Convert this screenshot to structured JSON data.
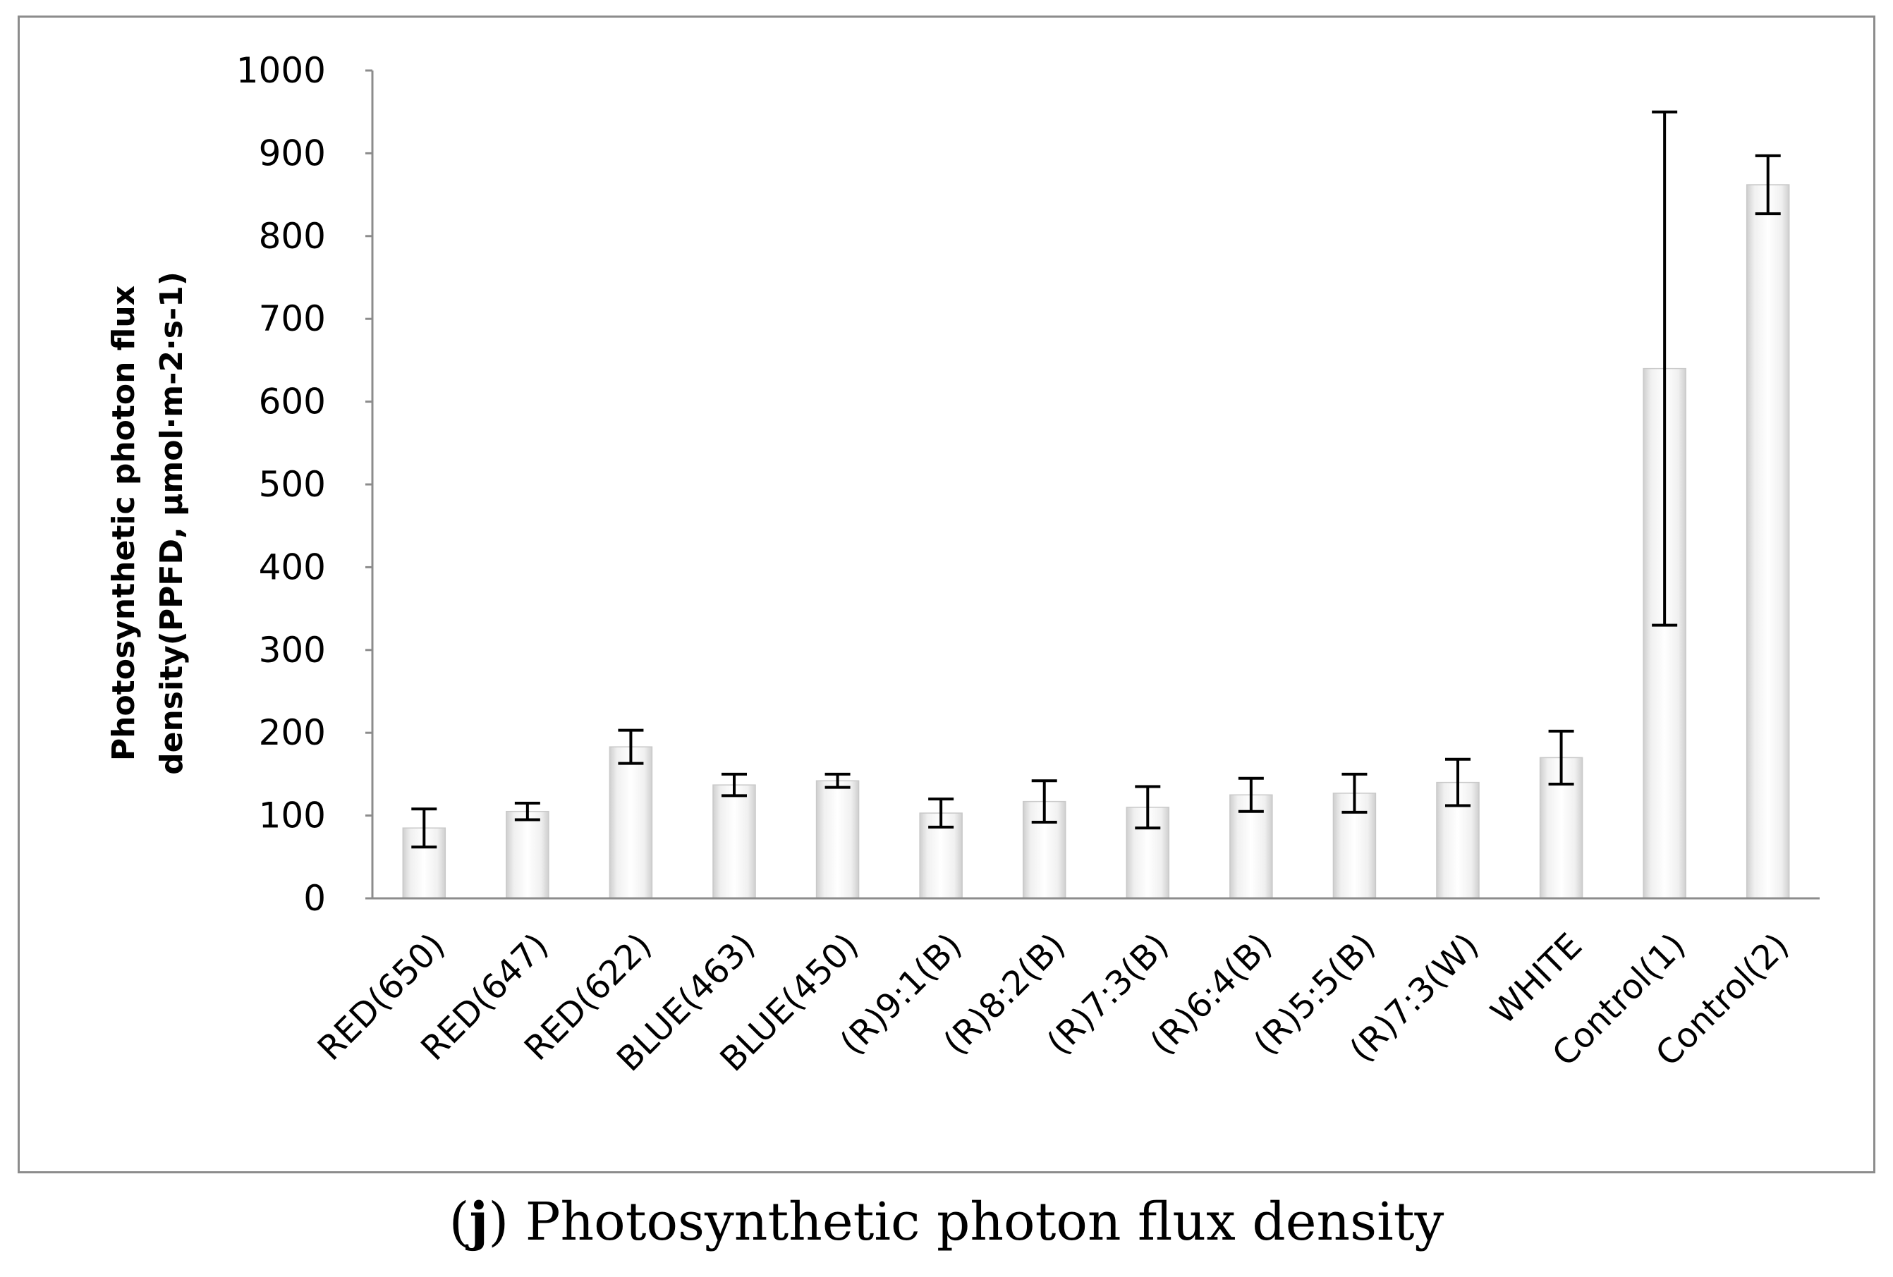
{
  "caption": {
    "open": "(",
    "letter": "j",
    "close": ")",
    "text": " Photosynthetic photon flux density"
  },
  "chart_data": {
    "type": "bar",
    "title": "",
    "xlabel": "",
    "ylabel": "Photosynthetic photon flux density(PPFD, µmol·m-2·s-1)",
    "ylabel_lines": [
      "Photosynthetic photon flux",
      "density(PPFD, µmol·m-2·s-1)"
    ],
    "ylim": [
      0,
      1000
    ],
    "yticks": [
      0,
      100,
      200,
      300,
      400,
      500,
      600,
      700,
      800,
      900,
      1000
    ],
    "grid": false,
    "legend": "none",
    "categories": [
      "RED(650)",
      "RED(647)",
      "RED(622)",
      "BLUE(463)",
      "BLUE(450)",
      "(R)9:1(B)",
      "(R)8:2(B)",
      "(R)7:3(B)",
      "(R)6:4(B)",
      "(R)5:5(B)",
      "(R)7:3(W)",
      "WHITE",
      "Control(1)",
      "Control(2)"
    ],
    "values": [
      85,
      105,
      183,
      137,
      142,
      103,
      117,
      110,
      125,
      127,
      140,
      170,
      640,
      862
    ],
    "error": [
      23,
      10,
      20,
      13,
      8,
      17,
      25,
      25,
      20,
      23,
      28,
      32,
      310,
      35
    ],
    "colors": {
      "bar_fill": "#f4f4f4",
      "bar_edge": "#c9c9c9",
      "axis": "#8c8c8c",
      "tick_text": "#000000",
      "ylabel_text": "#000000"
    }
  }
}
